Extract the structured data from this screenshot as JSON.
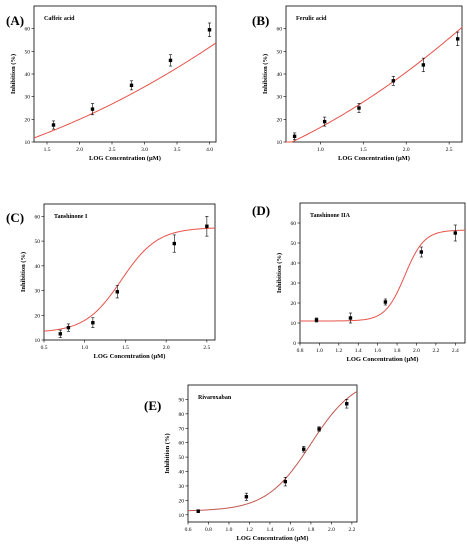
{
  "chart_data": [
    {
      "type": "scatter",
      "panel_label": "(A)",
      "title": "Caffeic acid",
      "xlabel": "LOG Concentration (μM)",
      "ylabel": "Inhibition (%)",
      "xlim": [
        1.3,
        4.1
      ],
      "ylim": [
        10,
        70
      ],
      "xticks": [
        "1.5",
        "2.0",
        "2.5",
        "3.0",
        "3.5",
        "4.0"
      ],
      "yticks": [
        "10",
        "20",
        "30",
        "40",
        "50",
        "60"
      ],
      "fit_color": "#e8534a",
      "fit": {
        "model": "quadratic",
        "coefficients": [
          0.6,
          6.6,
          1.55
        ]
      },
      "points": [
        {
          "x": 1.6,
          "y": 17.5,
          "err": 1.8
        },
        {
          "x": 2.2,
          "y": 24.5,
          "err": 2.5
        },
        {
          "x": 2.8,
          "y": 35.0,
          "err": 2.0
        },
        {
          "x": 3.4,
          "y": 46.0,
          "err": 2.5
        },
        {
          "x": 4.0,
          "y": 59.5,
          "err": 3.0
        }
      ]
    },
    {
      "type": "scatter",
      "panel_label": "(B)",
      "title": "Ferulic acid",
      "xlabel": "LOG Concentration (μM)",
      "ylabel": "Inhibition (%)",
      "xlim": [
        0.6,
        2.65
      ],
      "ylim": [
        10,
        70
      ],
      "xticks": [
        "1.0",
        "1.5",
        "2.0",
        "2.5"
      ],
      "yticks": [
        "10",
        "20",
        "30",
        "40",
        "50",
        "60"
      ],
      "fit_color": "#e8534a",
      "fit": {
        "model": "quadratic",
        "coefficients": [
          -0.5,
          13.2,
          3.72
        ]
      },
      "points": [
        {
          "x": 0.7,
          "y": 12.5,
          "err": 1.5
        },
        {
          "x": 1.05,
          "y": 19.0,
          "err": 2.0
        },
        {
          "x": 1.45,
          "y": 25.0,
          "err": 2.0
        },
        {
          "x": 1.85,
          "y": 37.0,
          "err": 2.0
        },
        {
          "x": 2.2,
          "y": 44.0,
          "err": 3.0
        },
        {
          "x": 2.6,
          "y": 55.5,
          "err": 3.0
        }
      ]
    },
    {
      "type": "scatter",
      "panel_label": "(C)",
      "title": "Tanshinone I",
      "xlabel": "LOG Concentration (μM)",
      "ylabel": "Inhibition (%)",
      "xlim": [
        0.5,
        2.6
      ],
      "ylim": [
        10,
        65
      ],
      "xticks": [
        "0.5",
        "1.0",
        "1.5",
        "2.0",
        "2.5"
      ],
      "yticks": [
        "10",
        "20",
        "30",
        "40",
        "50",
        "60"
      ],
      "fit_color": "#e8534a",
      "fit": {
        "model": "logistic",
        "bottom": 13,
        "top": 55.5,
        "x0": 1.45,
        "slope": 4.5
      },
      "points": [
        {
          "x": 0.7,
          "y": 12.5,
          "err": 1.5
        },
        {
          "x": 0.8,
          "y": 15.0,
          "err": 1.5
        },
        {
          "x": 1.1,
          "y": 17.0,
          "err": 2.0
        },
        {
          "x": 1.4,
          "y": 29.5,
          "err": 2.5
        },
        {
          "x": 2.1,
          "y": 49.0,
          "err": 3.5
        },
        {
          "x": 2.5,
          "y": 56.0,
          "err": 4.0
        }
      ]
    },
    {
      "type": "scatter",
      "panel_label": "(D)",
      "title": "Tanshinone IIA",
      "xlabel": "LOG Concentration (μM)",
      "ylabel": "Inhibition (%)",
      "xlim": [
        0.8,
        2.5
      ],
      "ylim": [
        0,
        70
      ],
      "xticks": [
        "0.8",
        "1.0",
        "1.2",
        "1.4",
        "1.6",
        "1.8",
        "2.0",
        "2.2",
        "2.4"
      ],
      "yticks": [
        "0",
        "10",
        "20",
        "30",
        "40",
        "50",
        "60"
      ],
      "fit_color": "#e8534a",
      "fit": {
        "model": "logistic",
        "bottom": 11,
        "top": 56.5,
        "x0": 1.88,
        "slope": 10
      },
      "points": [
        {
          "x": 0.97,
          "y": 11.5,
          "err": 1.0
        },
        {
          "x": 1.32,
          "y": 12.5,
          "err": 2.5
        },
        {
          "x": 1.68,
          "y": 20.5,
          "err": 1.5
        },
        {
          "x": 2.05,
          "y": 45.5,
          "err": 2.5
        },
        {
          "x": 2.4,
          "y": 55.0,
          "err": 4.0
        }
      ]
    },
    {
      "type": "scatter",
      "panel_label": "(E)",
      "title": "Rivaroxaban",
      "xlabel": "LOG Concentration (μM)",
      "ylabel": "Inhibition (%)",
      "xlim": [
        0.6,
        2.25
      ],
      "ylim": [
        5,
        100
      ],
      "xticks": [
        "0.6",
        "0.8",
        "1.0",
        "1.2",
        "1.4",
        "1.6",
        "1.8",
        "2.0",
        "2.2"
      ],
      "yticks": [
        "10",
        "20",
        "30",
        "40",
        "50",
        "60",
        "70",
        "80",
        "90"
      ],
      "fit_color": "#c0574f",
      "fit": {
        "model": "logistic",
        "bottom": 12.5,
        "top": 106,
        "x0": 1.8,
        "slope": 4.6
      },
      "points": [
        {
          "x": 0.7,
          "y": 12.5,
          "err": 1.0
        },
        {
          "x": 1.17,
          "y": 22.5,
          "err": 2.5
        },
        {
          "x": 1.55,
          "y": 33.0,
          "err": 3.0
        },
        {
          "x": 1.73,
          "y": 55.5,
          "err": 2.0
        },
        {
          "x": 1.88,
          "y": 69.5,
          "err": 1.5
        },
        {
          "x": 2.15,
          "y": 87.0,
          "err": 3.0
        }
      ]
    }
  ]
}
